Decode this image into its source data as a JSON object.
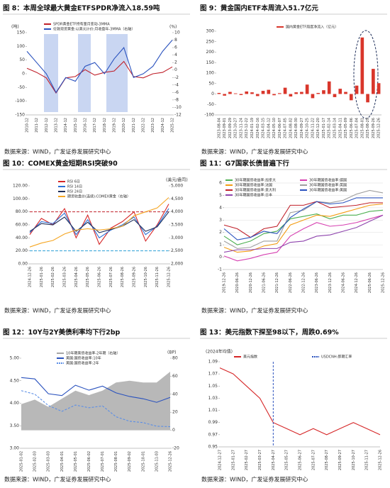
{
  "chart_data": [
    {
      "type": "line",
      "title": "图 8：本周全球最大黄金ETFSPDR净流入18.59吨",
      "source": "数据来源：WIND，广发证券发展研究中心",
      "categories": [
        "2010-12",
        "2011-12",
        "2012-12",
        "2013-12",
        "2014-12",
        "2015-12",
        "2016-12",
        "2017-12",
        "2018-12",
        "2019-12",
        "2020-12",
        "2021-12",
        "2022-12",
        "2023-12",
        "2024-12",
        "2025-12"
      ],
      "series": [
        {
          "name": "SPDR黄金ETF持有量月变动-3MMA",
          "color": "#c0202a",
          "values": [
            20,
            5,
            -15,
            -70,
            -15,
            -10,
            15,
            -5,
            5,
            10,
            45,
            -10,
            -15,
            0,
            5,
            25
          ]
        },
        {
          "name": "伦敦现货黄金:以美元计价:月收盘年-3MMA（右轴）",
          "color": "#2a52be",
          "axis": "y2",
          "values": [
            5,
            2,
            -1,
            -6,
            -2,
            -3,
            1,
            2,
            -1,
            3,
            6,
            -2,
            -1,
            1,
            5,
            8
          ]
        }
      ],
      "y_unit": "(吨)",
      "y2_unit": "(%)",
      "ylim": [
        -150,
        150
      ],
      "yticks": [
        -150,
        -100,
        -50,
        0,
        50,
        100,
        150
      ],
      "y2lim": [
        -12,
        10
      ],
      "y2ticks": [
        -12,
        -10,
        -8,
        -6,
        -4,
        -2,
        0,
        2,
        4,
        6,
        8,
        10
      ],
      "grid": false
    },
    {
      "type": "bar",
      "title": "图 9：黄金国内ETF本周流入51.7亿元",
      "source": "数据来源：WIND，广发证券发展研究中心",
      "categories": [
        "2023-08-04",
        "2023-09-01",
        "2023-09-29",
        "2023-10-27",
        "2023-11-24",
        "2023-12-22",
        "2024-01-19",
        "2024-02-16",
        "2024-03-15",
        "2024-04-12",
        "2024-05-10",
        "2024-06-07",
        "2024-07-05",
        "2024-08-02",
        "2024-08-30",
        "2024-09-27",
        "2024-10-25",
        "2024-11-22",
        "2024-12-20",
        "2025-01-17",
        "2025-02-14",
        "2025-03-14",
        "2025-04-11",
        "2025-05-09",
        "2025-06-06",
        "2025-07-04",
        "2025-08-01",
        "2025-08-29",
        "2025-09-26",
        "2025-12-26"
      ],
      "series": [
        {
          "name": "国内黄金ETF周度净流入（亿元）",
          "color": "#d9362b",
          "values": [
            5,
            -8,
            10,
            3,
            -5,
            12,
            8,
            -10,
            15,
            20,
            -6,
            4,
            30,
            -12,
            8,
            10,
            45,
            -20,
            5,
            18,
            60,
            -15,
            25,
            10,
            -30,
            40,
            270,
            -40,
            120,
            51.7
          ]
        }
      ],
      "ylim": [
        -100,
        300
      ],
      "yticks": [
        -100,
        -50,
        0,
        50,
        100,
        150,
        200,
        250,
        300
      ],
      "grid": false
    },
    {
      "type": "line",
      "title": "图 10：COMEX黄金短期RSI突破90",
      "source": "数据来源：WIND，广发证券发展研究中心",
      "categories": [
        "2024-12-26",
        "2025-01-26",
        "2025-02-26",
        "2025-03-26",
        "2025-04-26",
        "2025-05-26",
        "2025-06-26",
        "2025-07-26",
        "2025-08-26",
        "2025-09-26",
        "2025-10-26",
        "2025-11-26",
        "2025-12-26"
      ],
      "series": [
        {
          "name": "RSI 6日",
          "color": "#d62728",
          "values": [
            45,
            70,
            60,
            85,
            40,
            75,
            30,
            55,
            65,
            80,
            35,
            60,
            92
          ]
        },
        {
          "name": "RSI 14日",
          "color": "#2a6fd6",
          "values": [
            48,
            65,
            62,
            78,
            45,
            68,
            40,
            52,
            60,
            72,
            45,
            58,
            85
          ]
        },
        {
          "name": "RSI 24日",
          "color": "#1f2f5a",
          "values": [
            50,
            62,
            60,
            72,
            50,
            64,
            48,
            53,
            58,
            68,
            50,
            57,
            80
          ]
        },
        {
          "name": "期货收盘价(连续):COMEX黄金（右轴）",
          "color": "#f5a623",
          "axis": "y2",
          "values": [
            2650,
            2800,
            2900,
            3150,
            3300,
            3350,
            3300,
            3350,
            3450,
            3850,
            4000,
            4150,
            4550
          ]
        }
      ],
      "reference_lines": [
        {
          "value": 80,
          "color": "#c0202a"
        },
        {
          "value": 20,
          "color": "#2a9fd6"
        }
      ],
      "y2_unit": "(美元/盎司)",
      "ylim": [
        0,
        120
      ],
      "yticks": [
        {
          "value": 0,
          "label": "0.00"
        },
        {
          "value": 20,
          "label": "20.00"
        },
        {
          "value": 40,
          "label": "40.00"
        },
        {
          "value": 60,
          "label": "60.00"
        },
        {
          "value": 80,
          "label": "80.00"
        },
        {
          "value": 100,
          "label": "100.00"
        },
        {
          "value": 120,
          "label": "120.00"
        }
      ],
      "y2lim": [
        2000,
        5000
      ],
      "y2ticks": [
        {
          "value": 2000,
          "label": "2,000"
        },
        {
          "value": 2500,
          "label": "2,500"
        },
        {
          "value": 3000,
          "label": "3,000"
        },
        {
          "value": 3500,
          "label": "3,500"
        },
        {
          "value": 4000,
          "label": "4,000"
        },
        {
          "value": 4500,
          "label": "4,500"
        },
        {
          "value": 5000,
          "label": "5,000"
        }
      ],
      "grid": false
    },
    {
      "type": "line",
      "title": "图 11：G7国家长债普遍下行",
      "source": "数据来源：WIND，广发证券发展研究中心",
      "categories": [
        "2019-12-26",
        "2020-06-26",
        "2020-12-26",
        "2021-06-26",
        "2021-12-26",
        "2022-06-26",
        "2022-12-26",
        "2023-06-26",
        "2023-12-26",
        "2024-06-26",
        "2024-12-26",
        "2025-06-26",
        "2025-12-26"
      ],
      "series": [
        {
          "name": "30年期国债收益率:加拿大",
          "color": "#4caf50",
          "values": [
            1.7,
            1.0,
            1.3,
            1.9,
            2.1,
            3.1,
            3.3,
            3.5,
            3.1,
            3.4,
            3.4,
            3.7,
            3.8
          ]
        },
        {
          "name": "30年期国债收益率:德国",
          "color": "#d63fb0",
          "values": [
            0.1,
            -0.3,
            -0.1,
            0.2,
            0.4,
            1.7,
            2.3,
            2.8,
            2.5,
            2.6,
            2.8,
            3.1,
            3.4
          ]
        },
        {
          "name": "30年期国债收益率:法国",
          "color": "#f39c12",
          "values": [
            0.8,
            0.4,
            0.5,
            0.9,
            1.1,
            2.6,
            3.0,
            3.4,
            3.3,
            3.6,
            3.9,
            4.2,
            4.3
          ]
        },
        {
          "name": "30年期国债收益率:英国",
          "color": "#9e9e9e",
          "values": [
            1.3,
            0.7,
            0.8,
            1.3,
            1.3,
            3.6,
            3.8,
            4.5,
            4.4,
            4.6,
            5.1,
            5.4,
            5.2
          ]
        },
        {
          "name": "30年期国债收益率:意大利",
          "color": "#c0202a",
          "values": [
            2.6,
            2.3,
            1.6,
            2.3,
            2.5,
            4.2,
            4.2,
            4.5,
            4.0,
            4.1,
            4.2,
            4.4,
            4.4
          ]
        },
        {
          "name": "30年期国债收益率:美国",
          "color": "#2a52be",
          "values": [
            2.3,
            1.4,
            1.6,
            2.1,
            1.9,
            3.2,
            3.9,
            4.5,
            4.3,
            4.4,
            4.8,
            4.8,
            4.8
          ]
        },
        {
          "name": "30年期国债收益率:日本",
          "color": "#8e44ad",
          "values": [
            0.4,
            0.6,
            0.6,
            0.7,
            0.7,
            1.2,
            1.3,
            1.7,
            1.8,
            2.1,
            2.4,
            2.9,
            3.4
          ]
        }
      ],
      "ylim": [
        -1,
        6
      ],
      "yticks": [
        -1,
        0,
        1,
        2,
        3,
        4,
        5,
        6
      ],
      "grid": true
    },
    {
      "type": "line",
      "title": "图 12：10Y与2Y美债利率均下行2bp",
      "source": "数据来源：WIND，广发证券发展研究中心",
      "categories": [
        "2025-01-02",
        "2025-02-03",
        "2025-03-03",
        "2025-04-01",
        "2025-05-01",
        "2025-06-02",
        "2025-07-01",
        "2025-08-01",
        "2025-09-02",
        "2025-10-01",
        "2025-11-03",
        "2025-12-26"
      ],
      "series": [
        {
          "name": "10年期美债收益率-2年期（右轴）",
          "color": "#a6a6a6",
          "axis": "y2",
          "area": true,
          "values": [
            29,
            34,
            26,
            35,
            44,
            39,
            44,
            53,
            55,
            53,
            53,
            65
          ]
        },
        {
          "name": "美国:国债收益率:10年",
          "color": "#2a52be",
          "values": [
            4.57,
            4.54,
            4.21,
            4.17,
            4.4,
            4.29,
            4.38,
            4.23,
            4.15,
            4.1,
            4.02,
            4.13
          ]
        },
        {
          "name": "美国:国债收益率:2年",
          "color": "#5b8ee6",
          "dash": true,
          "values": [
            4.28,
            4.2,
            3.95,
            3.82,
            3.96,
            3.9,
            3.94,
            3.7,
            3.6,
            3.57,
            3.49,
            3.48
          ]
        }
      ],
      "y2_unit": "(BP)",
      "ylim": [
        3,
        5
      ],
      "yticks": [
        {
          "value": 3,
          "label": "3.00"
        },
        {
          "value": 3.5,
          "label": "3.50"
        },
        {
          "value": 4,
          "label": "4.00"
        },
        {
          "value": 4.5,
          "label": "4.50"
        },
        {
          "value": 5,
          "label": "5.00"
        }
      ],
      "y2lim": [
        -20,
        80
      ],
      "y2ticks": [
        -20,
        0,
        20,
        40,
        60,
        80
      ],
      "grid": false
    },
    {
      "type": "line",
      "title": "图 13：美元指数下探至98以下，周跌0.69%",
      "source": "数据来源：WIND，广发证券发展研究中心",
      "note": "(2024年均值)",
      "categories": [
        "2024-12-27",
        "2025-01-27",
        "2025-02-27",
        "2025-03-27",
        "2025-04-27",
        "2025-05-27",
        "2025-06-27",
        "2025-07-27",
        "2025-08-27",
        "2025-09-27",
        "2025-10-27",
        "2025-11-27",
        "2025-12-26"
      ],
      "series": [
        {
          "name": "美元指数",
          "color": "#d62728",
          "values": [
            1.08,
            1.07,
            1.05,
            1.03,
            0.99,
            0.98,
            0.97,
            0.98,
            0.97,
            0.98,
            0.99,
            0.98,
            0.97
          ]
        }
      ],
      "vline": {
        "label": "USDCNH:即期汇率",
        "category": "2025-04-27",
        "color": "#2a52be"
      },
      "ylim": [
        0.95,
        1.09
      ],
      "yticks": [
        0.95,
        0.97,
        0.99,
        1.01,
        1.03,
        1.05,
        1.07,
        1.09
      ],
      "grid": false
    }
  ]
}
